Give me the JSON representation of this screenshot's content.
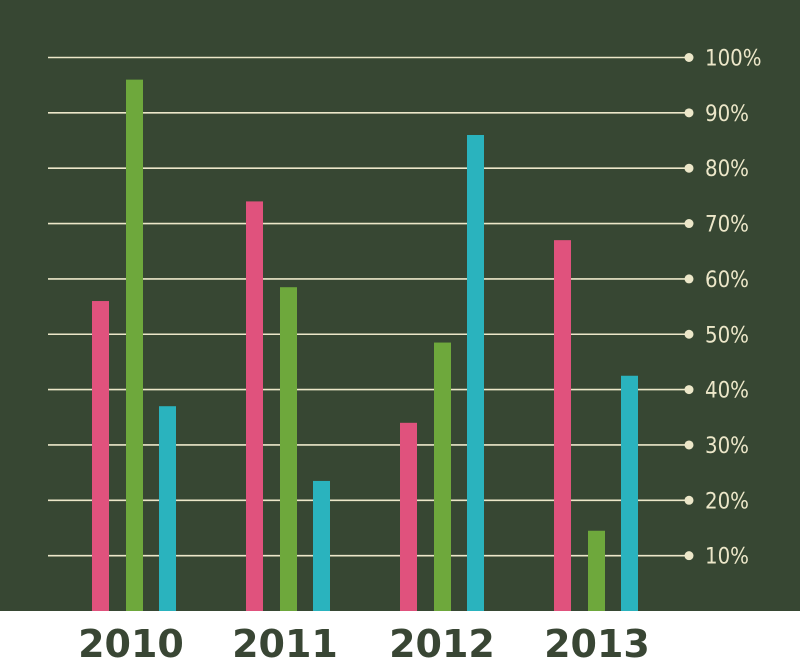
{
  "chart_data": {
    "type": "bar",
    "categories": [
      "2010",
      "2011",
      "2012",
      "2013"
    ],
    "series": [
      {
        "values": [
          56,
          74,
          34,
          67
        ]
      },
      {
        "values": [
          96,
          58.5,
          48.5,
          14.5
        ]
      },
      {
        "values": [
          37,
          23.5,
          86,
          42.5
        ]
      }
    ],
    "y_ticks": [
      "10%",
      "20%",
      "30%",
      "40%",
      "50%",
      "60%",
      "70%",
      "80%",
      "90%",
      "100%"
    ],
    "ylim": [
      0,
      100
    ],
    "grid": true,
    "colors": {
      "background": "#374733",
      "gridline": "#ece7c9",
      "axis_label": "#ece7c9",
      "category_label": "#394634",
      "series": [
        "#e0527d",
        "#6ea83c",
        "#2ab3be"
      ]
    }
  }
}
